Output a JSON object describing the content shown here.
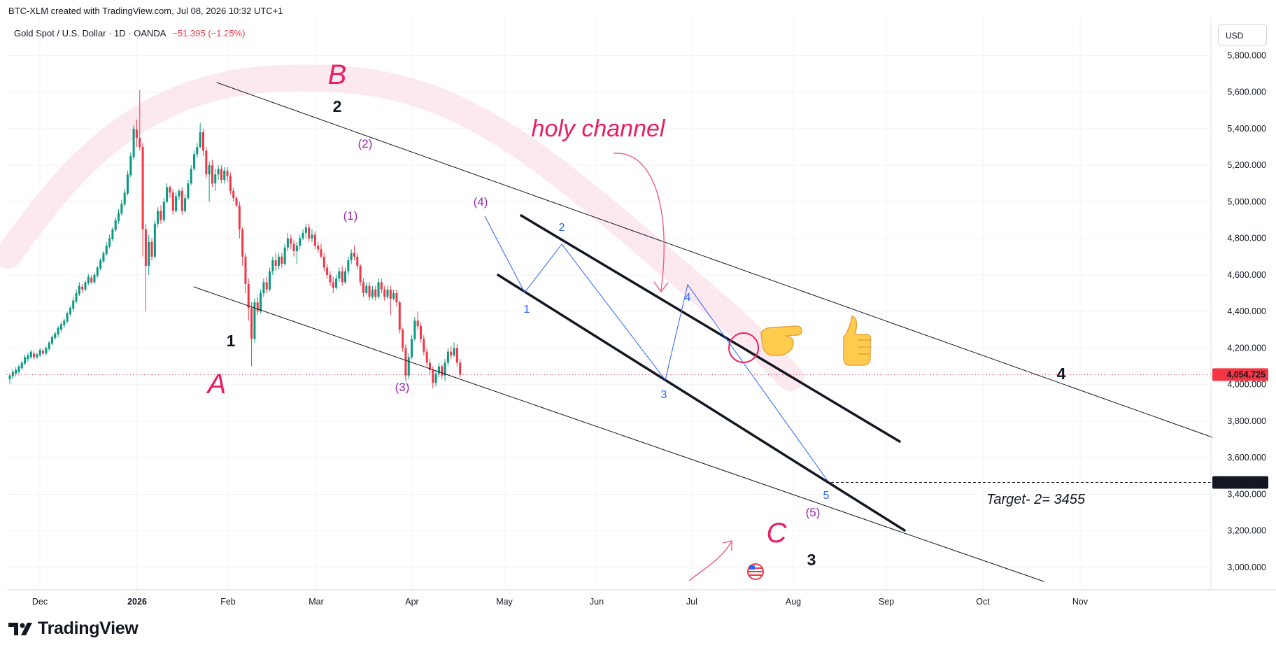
{
  "header": {
    "watermark": "BTC-XLM created with TradingView.com, Jul 08, 2026 10:32 UTC+1",
    "symbol": "Gold Spot / U.S. Dollar · 1D · OANDA",
    "change": "−51.395 (−1.25%)",
    "currency_button": "USD"
  },
  "footer": {
    "brand": "TradingView"
  },
  "colors": {
    "up": "#089981",
    "down": "#f23645",
    "annotation_pink": "#e91e63",
    "wave_blue": "#2962ff",
    "wave_purple": "#9c27b0"
  },
  "chart_data": {
    "type": "candlestick",
    "symbol": "XAUUSD",
    "x_ticks": [
      "Dec",
      "2026",
      "Feb",
      "Mar",
      "Apr",
      "May",
      "Jun",
      "Jul",
      "Aug",
      "Sep",
      "Oct",
      "Nov"
    ],
    "y_ticks": [
      "5,800.000",
      "5,600.000",
      "5,400.000",
      "5,200.000",
      "5,000.000",
      "4,800.000",
      "4,600.000",
      "4,400.000",
      "4,200.000",
      "4,000.000",
      "3,800.000",
      "3,600.000",
      "3,400.000",
      "3,200.000",
      "3,000.000"
    ],
    "ylim": [
      2930,
      5900
    ],
    "price_labels": {
      "last_price": "4,054.725",
      "target_price": "3,464.809"
    },
    "last_price_value": 4054.725,
    "target_price_value": 3464.809,
    "annotations": {
      "big_waves": [
        "A",
        "B",
        "C"
      ],
      "primary_counts": [
        "1",
        "2",
        "3",
        "4"
      ],
      "purple_counts": [
        "(1)",
        "(2)",
        "(3)",
        "(4)",
        "(5)"
      ],
      "blue_counts": [
        "1",
        "2",
        "3",
        "4",
        "5"
      ],
      "channel_note": "holy channel",
      "target_note": "Target- 2= 3455"
    },
    "candles": [
      [
        4030,
        4050,
        4005,
        4060
      ],
      [
        4045,
        4070,
        4030,
        4085
      ],
      [
        4060,
        4080,
        4045,
        4095
      ],
      [
        4070,
        4100,
        4060,
        4110
      ],
      [
        4090,
        4120,
        4080,
        4130
      ],
      [
        4115,
        4150,
        4105,
        4165
      ],
      [
        4140,
        4160,
        4125,
        4175
      ],
      [
        4150,
        4180,
        4140,
        4190
      ],
      [
        4170,
        4150,
        4135,
        4185
      ],
      [
        4150,
        4165,
        4140,
        4175
      ],
      [
        4160,
        4190,
        4150,
        4200
      ],
      [
        4185,
        4170,
        4160,
        4195
      ],
      [
        4170,
        4200,
        4160,
        4210
      ],
      [
        4195,
        4230,
        4185,
        4240
      ],
      [
        4225,
        4260,
        4215,
        4270
      ],
      [
        4255,
        4280,
        4245,
        4290
      ],
      [
        4275,
        4310,
        4260,
        4320
      ],
      [
        4300,
        4330,
        4290,
        4345
      ],
      [
        4325,
        4350,
        4310,
        4360
      ],
      [
        4345,
        4390,
        4335,
        4400
      ],
      [
        4385,
        4420,
        4375,
        4430
      ],
      [
        4415,
        4460,
        4400,
        4480
      ],
      [
        4455,
        4500,
        4445,
        4520
      ],
      [
        4495,
        4540,
        4485,
        4560
      ],
      [
        4535,
        4520,
        4500,
        4550
      ],
      [
        4520,
        4560,
        4510,
        4570
      ],
      [
        4555,
        4590,
        4545,
        4605
      ],
      [
        4585,
        4560,
        4550,
        4600
      ],
      [
        4560,
        4600,
        4550,
        4610
      ],
      [
        4595,
        4640,
        4585,
        4650
      ],
      [
        4635,
        4680,
        4625,
        4690
      ],
      [
        4675,
        4720,
        4665,
        4730
      ],
      [
        4715,
        4760,
        4705,
        4780
      ],
      [
        4755,
        4800,
        4745,
        4820
      ],
      [
        4795,
        4850,
        4785,
        4860
      ],
      [
        4845,
        4900,
        4835,
        4915
      ],
      [
        4895,
        4940,
        4880,
        4960
      ],
      [
        4935,
        4990,
        4925,
        5010
      ],
      [
        4985,
        5050,
        4975,
        5070
      ],
      [
        5045,
        5150,
        5035,
        5170
      ],
      [
        5145,
        5250,
        5135,
        5270
      ],
      [
        5245,
        5400,
        5230,
        5420
      ],
      [
        5395,
        5350,
        5300,
        5450
      ],
      [
        5350,
        5300,
        5280,
        5610
      ],
      [
        5300,
        4850,
        4700,
        5320
      ],
      [
        4850,
        4650,
        4400,
        4880
      ],
      [
        4650,
        4780,
        4600,
        4820
      ],
      [
        4780,
        4700,
        4680,
        4800
      ],
      [
        4700,
        4880,
        4690,
        4900
      ],
      [
        4880,
        4950,
        4860,
        4970
      ],
      [
        4950,
        4900,
        4880,
        4980
      ],
      [
        4900,
        5000,
        4890,
        5020
      ],
      [
        5000,
        5080,
        4990,
        5100
      ],
      [
        5080,
        5050,
        5020,
        5090
      ],
      [
        5050,
        4950,
        4930,
        5070
      ],
      [
        4950,
        5030,
        4940,
        5050
      ],
      [
        5030,
        5060,
        5010,
        5070
      ],
      [
        5060,
        4950,
        4930,
        5080
      ],
      [
        4950,
        5020,
        4940,
        5040
      ],
      [
        5020,
        5100,
        5010,
        5120
      ],
      [
        5100,
        5180,
        5090,
        5200
      ],
      [
        5180,
        5260,
        5170,
        5280
      ],
      [
        5260,
        5300,
        5240,
        5320
      ],
      [
        5300,
        5380,
        5290,
        5430
      ],
      [
        5380,
        5280,
        5250,
        5400
      ],
      [
        5280,
        5150,
        5130,
        5300
      ],
      [
        5150,
        5200,
        5000,
        5220
      ],
      [
        5200,
        5100,
        5080,
        5230
      ],
      [
        5100,
        5150,
        5060,
        5180
      ],
      [
        5150,
        5180,
        5120,
        5200
      ],
      [
        5180,
        5120,
        5100,
        5200
      ],
      [
        5120,
        5170,
        5100,
        5190
      ],
      [
        5170,
        5140,
        5110,
        5190
      ],
      [
        5140,
        5060,
        5040,
        5160
      ],
      [
        5060,
        5020,
        5000,
        5080
      ],
      [
        5020,
        4980,
        4970,
        5030
      ],
      [
        4980,
        4850,
        4800,
        5000
      ],
      [
        4850,
        4700,
        4650,
        4860
      ],
      [
        4700,
        4550,
        4500,
        4720
      ],
      [
        4550,
        4420,
        4350,
        4580
      ],
      [
        4420,
        4250,
        4100,
        4450
      ],
      [
        4250,
        4450,
        4230,
        4470
      ],
      [
        4450,
        4400,
        4380,
        4480
      ],
      [
        4400,
        4500,
        4390,
        4520
      ],
      [
        4500,
        4560,
        4480,
        4580
      ],
      [
        4560,
        4520,
        4500,
        4590
      ],
      [
        4520,
        4620,
        4510,
        4640
      ],
      [
        4620,
        4680,
        4600,
        4700
      ],
      [
        4680,
        4650,
        4620,
        4720
      ],
      [
        4650,
        4700,
        4630,
        4720
      ],
      [
        4700,
        4660,
        4640,
        4720
      ],
      [
        4660,
        4750,
        4650,
        4770
      ],
      [
        4750,
        4800,
        4730,
        4830
      ],
      [
        4800,
        4770,
        4740,
        4820
      ],
      [
        4770,
        4730,
        4700,
        4790
      ],
      [
        4730,
        4760,
        4660,
        4780
      ],
      [
        4760,
        4800,
        4740,
        4820
      ],
      [
        4800,
        4830,
        4790,
        4850
      ],
      [
        4830,
        4860,
        4800,
        4880
      ],
      [
        4860,
        4800,
        4780,
        4880
      ],
      [
        4800,
        4820,
        4780,
        4850
      ],
      [
        4820,
        4760,
        4740,
        4840
      ],
      [
        4760,
        4740,
        4720,
        4780
      ],
      [
        4740,
        4700,
        4690,
        4770
      ],
      [
        4700,
        4640,
        4620,
        4720
      ],
      [
        4640,
        4600,
        4580,
        4660
      ],
      [
        4600,
        4560,
        4540,
        4620
      ],
      [
        4560,
        4530,
        4500,
        4590
      ],
      [
        4530,
        4580,
        4520,
        4600
      ],
      [
        4580,
        4620,
        4560,
        4640
      ],
      [
        4620,
        4560,
        4540,
        4650
      ],
      [
        4560,
        4620,
        4550,
        4640
      ],
      [
        4620,
        4680,
        4600,
        4700
      ],
      [
        4680,
        4720,
        4660,
        4740
      ],
      [
        4720,
        4700,
        4680,
        4760
      ],
      [
        4700,
        4650,
        4630,
        4720
      ],
      [
        4650,
        4560,
        4540,
        4660
      ],
      [
        4560,
        4500,
        4480,
        4580
      ],
      [
        4500,
        4540,
        4490,
        4560
      ],
      [
        4540,
        4480,
        4460,
        4560
      ],
      [
        4480,
        4520,
        4470,
        4540
      ],
      [
        4520,
        4480,
        4460,
        4540
      ],
      [
        4480,
        4560,
        4470,
        4580
      ],
      [
        4560,
        4520,
        4500,
        4580
      ],
      [
        4520,
        4480,
        4460,
        4540
      ],
      [
        4480,
        4520,
        4470,
        4540
      ],
      [
        4520,
        4470,
        4380,
        4540
      ],
      [
        4470,
        4500,
        4460,
        4520
      ],
      [
        4500,
        4450,
        4430,
        4520
      ],
      [
        4450,
        4300,
        4280,
        4460
      ],
      [
        4300,
        4200,
        4180,
        4310
      ],
      [
        4200,
        4050,
        4020,
        4220
      ],
      [
        4050,
        4150,
        4030,
        4170
      ],
      [
        4150,
        4250,
        4140,
        4270
      ],
      [
        4250,
        4350,
        4240,
        4370
      ],
      [
        4350,
        4320,
        4300,
        4400
      ],
      [
        4320,
        4250,
        4230,
        4340
      ],
      [
        4250,
        4180,
        4160,
        4270
      ],
      [
        4180,
        4120,
        4100,
        4200
      ],
      [
        4120,
        4080,
        4050,
        4140
      ],
      [
        4080,
        4010,
        3980,
        4100
      ],
      [
        4010,
        4060,
        3990,
        4080
      ],
      [
        4060,
        4100,
        4040,
        4120
      ],
      [
        4100,
        4050,
        4030,
        4110
      ],
      [
        4050,
        4120,
        4020,
        4140
      ],
      [
        4120,
        4180,
        4100,
        4200
      ],
      [
        4180,
        4160,
        4140,
        4210
      ],
      [
        4160,
        4200,
        4150,
        4230
      ],
      [
        4200,
        4120,
        4100,
        4220
      ],
      [
        4120,
        4055,
        4040,
        4140
      ]
    ]
  }
}
